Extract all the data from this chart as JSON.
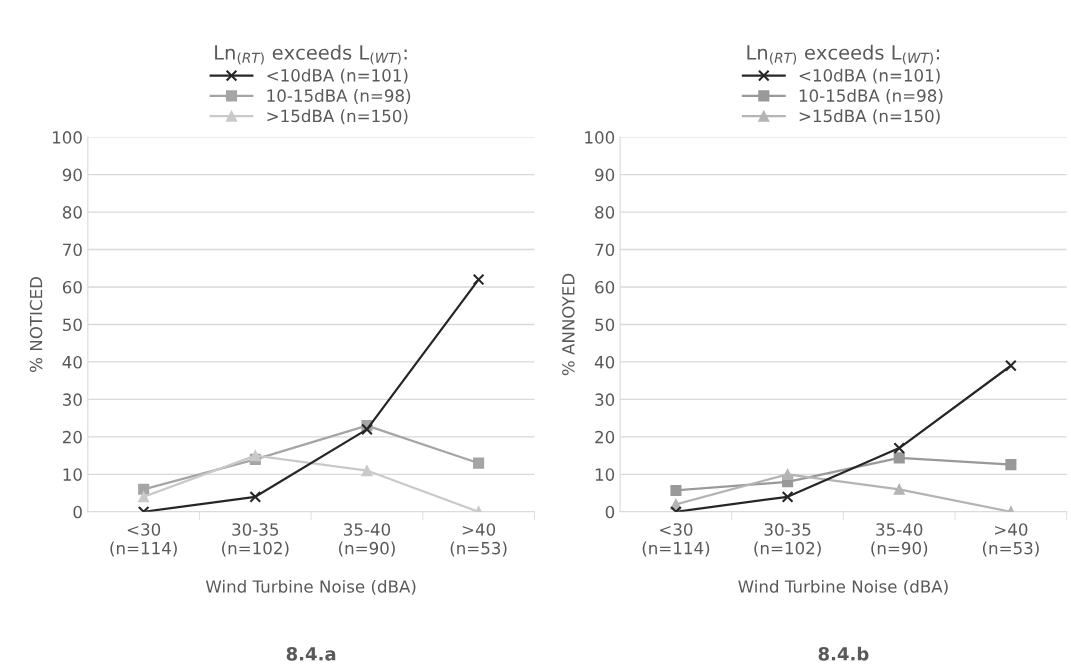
{
  "chart_data": [
    {
      "type": "line",
      "legend_title": "Ln$_{(RT)}$ exceeds L$_{(WT)}$:",
      "legend": "top",
      "ylabel": "% NOTICED",
      "xlabel": "Wind Turbine Noise (dBA)",
      "annotations": [
        "8.4.a"
      ],
      "categories": [
        "<30\n(n=114)",
        "30-35\n(n=102)",
        "35-40\n(n=90)",
        ">40\n(n=53)"
      ],
      "ylim": [
        0,
        100
      ],
      "yticks": [
        0,
        10,
        20,
        30,
        40,
        50,
        60,
        70,
        80,
        90,
        100
      ],
      "grid": "y",
      "series": [
        {
          "name": "<10dBA (n=101)",
          "color": "#262626",
          "marker": "cross",
          "values": [
            0,
            4,
            22,
            62
          ]
        },
        {
          "name": "10-15dBA (n=98)",
          "color": "#a5a5a5",
          "marker": "square",
          "values": [
            6,
            14,
            23,
            13
          ]
        },
        {
          "name": ">15dBA (n=150)",
          "color": "#c9c9c9",
          "marker": "triangle",
          "values": [
            4,
            15,
            11,
            0
          ]
        }
      ]
    },
    {
      "type": "line",
      "legend_title": "Ln$_{(RT)}$ exceeds L$_{(WT)}$:",
      "legend": "top",
      "ylabel": "% ANNOYED",
      "xlabel": "Wind Turbine Noise (dBA)",
      "annotations": [
        "8.4.b"
      ],
      "categories": [
        "<30\n(n=114)",
        "30-35\n(n=102)",
        "35-40\n(n=90)",
        ">40\n(n=53)"
      ],
      "ylim": [
        0,
        100
      ],
      "yticks": [
        0,
        10,
        20,
        30,
        40,
        50,
        60,
        70,
        80,
        90,
        100
      ],
      "grid": "y",
      "series": [
        {
          "name": "<10dBA (n=101)",
          "color": "#262626",
          "marker": "cross",
          "values": [
            0,
            4,
            17,
            39
          ]
        },
        {
          "name": "10-15dBA (n=98)",
          "color": "#999999",
          "marker": "square",
          "values": [
            5.7,
            8,
            14.4,
            12.6
          ]
        },
        {
          "name": ">15dBA (n=150)",
          "color": "#b4b4b4",
          "marker": "triangle",
          "values": [
            2,
            10,
            6,
            0
          ]
        }
      ]
    }
  ]
}
